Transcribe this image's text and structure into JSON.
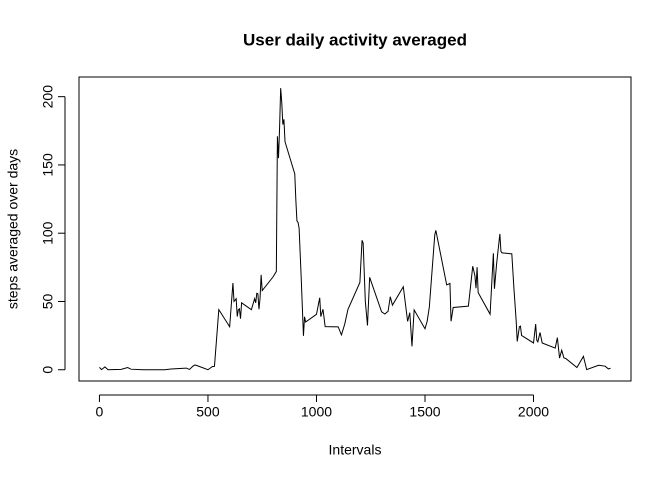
{
  "chart_data": {
    "type": "line",
    "title": "User daily activity averaged",
    "x_label": "Intervals",
    "y_label": "steps averaged over days",
    "x": [
      0,
      10,
      25,
      40,
      55,
      100,
      130,
      145,
      200,
      300,
      330,
      400,
      415,
      430,
      440,
      450,
      500,
      520,
      530,
      550,
      600,
      615,
      620,
      630,
      635,
      640,
      645,
      650,
      655,
      700,
      715,
      720,
      725,
      730,
      735,
      740,
      745,
      750,
      800,
      815,
      820,
      825,
      830,
      835,
      840,
      845,
      850,
      855,
      900,
      905,
      910,
      915,
      920,
      930,
      940,
      945,
      950,
      1000,
      1015,
      1020,
      1030,
      1040,
      1100,
      1115,
      1130,
      1145,
      1200,
      1210,
      1215,
      1225,
      1235,
      1245,
      1300,
      1315,
      1330,
      1340,
      1350,
      1400,
      1420,
      1430,
      1440,
      1450,
      1500,
      1510,
      1520,
      1545,
      1550,
      1600,
      1615,
      1620,
      1630,
      1700,
      1720,
      1730,
      1735,
      1740,
      1745,
      1800,
      1815,
      1820,
      1830,
      1845,
      1850,
      1855,
      1900,
      1910,
      1920,
      1925,
      1935,
      1940,
      1945,
      2000,
      2010,
      2015,
      2020,
      2030,
      2040,
      2100,
      2110,
      2120,
      2130,
      2140,
      2150,
      2200,
      2230,
      2245,
      2300,
      2330,
      2345,
      2355
    ],
    "series": [
      {
        "name": "steps",
        "color": "#000000",
        "values": [
          1.7,
          0.1,
          2.1,
          0,
          0.1,
          0.3,
          1.6,
          0.4,
          0,
          0,
          0.5,
          1.2,
          0.2,
          2.5,
          3.5,
          3,
          0,
          2.3,
          2.5,
          44,
          31.5,
          63.5,
          50,
          52,
          39,
          44,
          44.6,
          37.4,
          49,
          44,
          52,
          49,
          56,
          55.7,
          44.3,
          52.3,
          69.5,
          58,
          68,
          72,
          171,
          155,
          177,
          206.2,
          195.9,
          179.6,
          183.4,
          167,
          143.5,
          124,
          109,
          108,
          103.7,
          66,
          24.8,
          38.8,
          34.9,
          40.6,
          52.7,
          38.9,
          44.3,
          31.6,
          31.4,
          25.5,
          33.3,
          44.2,
          63.9,
          94.8,
          92.8,
          50.2,
          32.4,
          67.7,
          42.4,
          40.8,
          42.8,
          53.5,
          47.3,
          60.8,
          35.4,
          41.8,
          17.1,
          43.8,
          30,
          35.5,
          45.9,
          98.7,
          102.1,
          62.1,
          63.2,
          35.5,
          45.6,
          46.6,
          75.8,
          68.9,
          59.7,
          75.1,
          56.5,
          40.7,
          85.3,
          59.3,
          77.6,
          99.5,
          86.6,
          85.6,
          84.9,
          59,
          36.1,
          20.7,
          31.5,
          31.9,
          25.1,
          19.6,
          33.5,
          21.6,
          20.4,
          27.3,
          19.6,
          15.9,
          23.5,
          8.5,
          14.3,
          8.7,
          8.1,
          1.6,
          9.8,
          0.1,
          3.3,
          2.6,
          0.6,
          1.1
        ]
      }
    ],
    "xlim": [
      -94.2,
      2449.2
    ],
    "ylim": [
      -8.25,
      214.4
    ],
    "xticks": [
      0,
      500,
      1000,
      1500,
      2000
    ],
    "yticks": [
      0,
      50,
      100,
      150,
      200
    ]
  }
}
